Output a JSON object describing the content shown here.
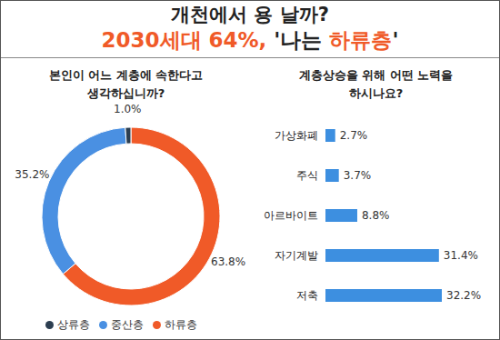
{
  "title": "개천에서 용 날까?",
  "subtitle": "2030세대 64%, '나는 하류층'",
  "chart_data": [
    {
      "type": "pie",
      "title": "본인이 어느 계층에 속한다고 생각하십니까?",
      "categories": [
        "하류층",
        "중산층",
        "상류층"
      ],
      "values": [
        63.8,
        35.2,
        1.0
      ],
      "value_labels": [
        "63.8%",
        "35.2%",
        "1.0%"
      ],
      "colors": [
        "#f05a28",
        "#4a90e2",
        "#2c3e50"
      ],
      "data_labels": true,
      "legend": "bottom"
    },
    {
      "type": "bar",
      "title": "계층상승을 위해 어떤 노력을 하시나요?",
      "orientation": "horizontal",
      "categories": [
        "가상화폐",
        "주식",
        "아르바이트",
        "자기계발",
        "저축"
      ],
      "values": [
        2.7,
        3.7,
        8.8,
        31.4,
        32.2
      ],
      "value_labels": [
        "2.7%",
        "3.7%",
        "8.8%",
        "31.4%",
        "32.2%"
      ],
      "color": "#3d8fe0",
      "data_labels": true,
      "tick_labels": "y"
    }
  ]
}
